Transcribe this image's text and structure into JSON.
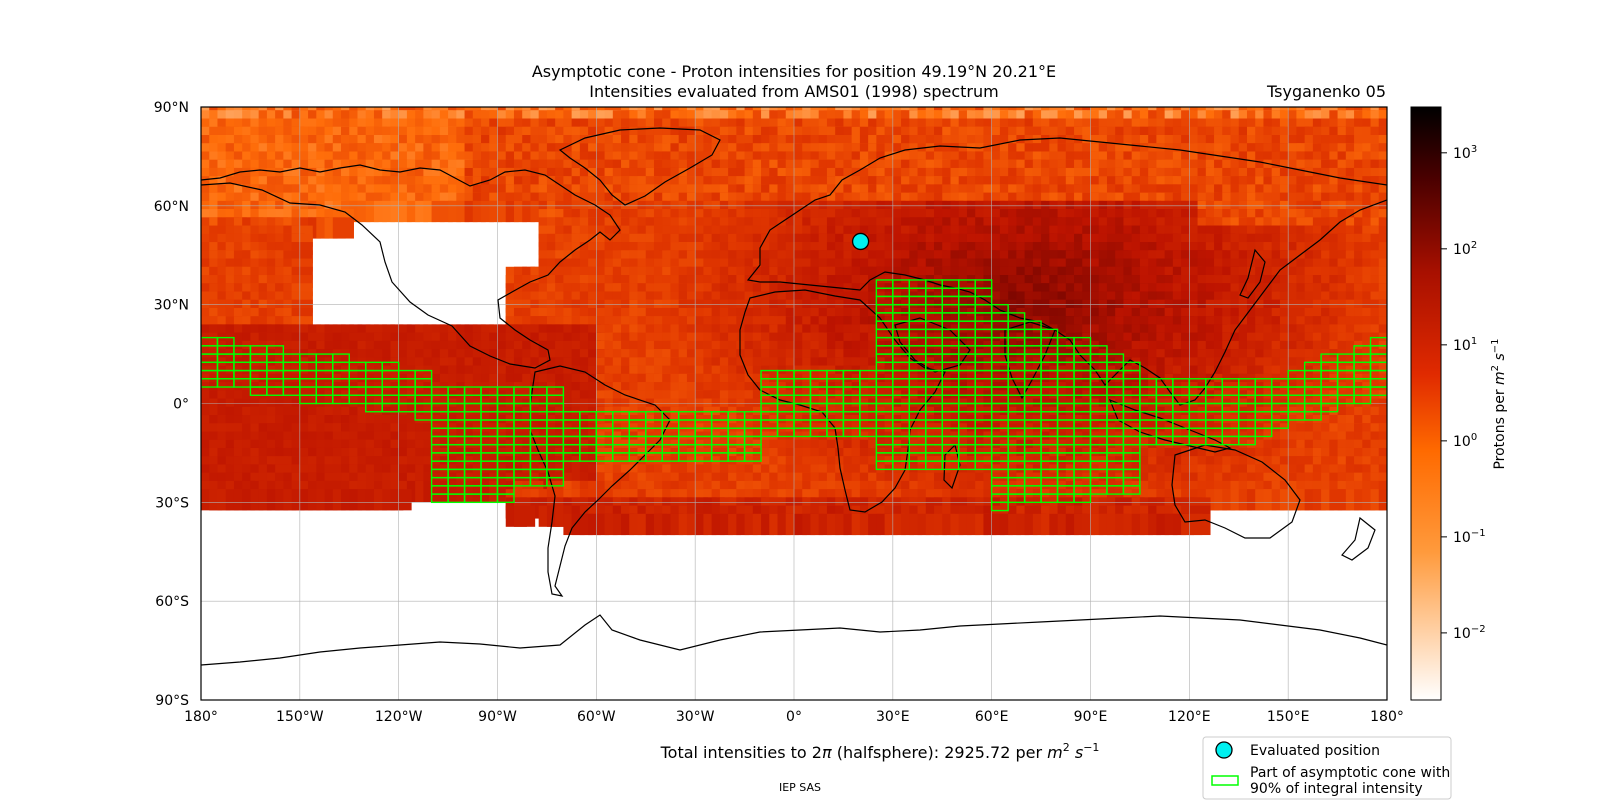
{
  "chart_data": {
    "type": "heatmap",
    "title": "Asymptotic cone - Proton intensities for position 49.19°N 20.21°E",
    "subtitle": "Intensities evaluated from AMS01 (1998) spectrum",
    "model_label": "Tsyganenko 05",
    "xlim": [
      -180,
      180
    ],
    "ylim": [
      -90,
      90
    ],
    "grid": true,
    "x_ticks": [
      "180°",
      "150°W",
      "120°W",
      "90°W",
      "60°W",
      "30°W",
      "0°",
      "30°E",
      "60°E",
      "90°E",
      "120°E",
      "150°E",
      "180°"
    ],
    "x_tick_values": [
      -180,
      -150,
      -120,
      -90,
      -60,
      -30,
      0,
      30,
      60,
      90,
      120,
      150,
      180
    ],
    "y_ticks": [
      "90°N",
      "60°N",
      "30°N",
      "0°",
      "30°S",
      "60°S",
      "90°S"
    ],
    "y_tick_values": [
      90,
      60,
      30,
      0,
      -30,
      -60,
      -90
    ],
    "colorbar": {
      "label": "Protons per m² s⁻¹",
      "scale": "log",
      "range": [
        0.002,
        3000
      ],
      "ticks": [
        {
          "value": 1000,
          "base": "10",
          "exp": "3"
        },
        {
          "value": 100,
          "base": "10",
          "exp": "2"
        },
        {
          "value": 10,
          "base": "10",
          "exp": "1"
        },
        {
          "value": 1,
          "base": "10",
          "exp": "0"
        },
        {
          "value": 0.1,
          "base": "10",
          "exp": "−1"
        },
        {
          "value": 0.01,
          "base": "10",
          "exp": "−2"
        }
      ]
    },
    "evaluated_position": {
      "lat": 49.19,
      "lon": 20.21
    },
    "total_intensity": {
      "label": "Total intensities to 2π (halfsphere): 2925.72 per m² s⁻¹",
      "value": 2925.72
    },
    "legend": [
      {
        "name": "Evaluated position",
        "marker": "cyan-circle"
      },
      {
        "name": "Part of asymptotic cone with\n90% of integral intensity",
        "marker": "green-box"
      }
    ],
    "credit": "IEP SAS"
  },
  "footer": {
    "total_prefix": "Total intensities to 2",
    "total_pi": "π",
    "total_mid": " (halfsphere): 2925.72 per ",
    "total_m": "m",
    "total_m_exp": "2",
    "total_s": "s",
    "total_s_exp": "−1",
    "credit": "IEP SAS"
  },
  "legend_text": {
    "item1": "Evaluated position",
    "item2_line1": "Part of asymptotic cone with",
    "item2_line2": "90% of integral intensity"
  },
  "colorbar_label": {
    "prefix": "Protons per ",
    "m": "m",
    "m_exp": "2",
    "s": "s",
    "s_exp": "−1"
  },
  "colors": {
    "evaluated_marker": "#00f0f0",
    "cone_outline": "#00ff00"
  }
}
